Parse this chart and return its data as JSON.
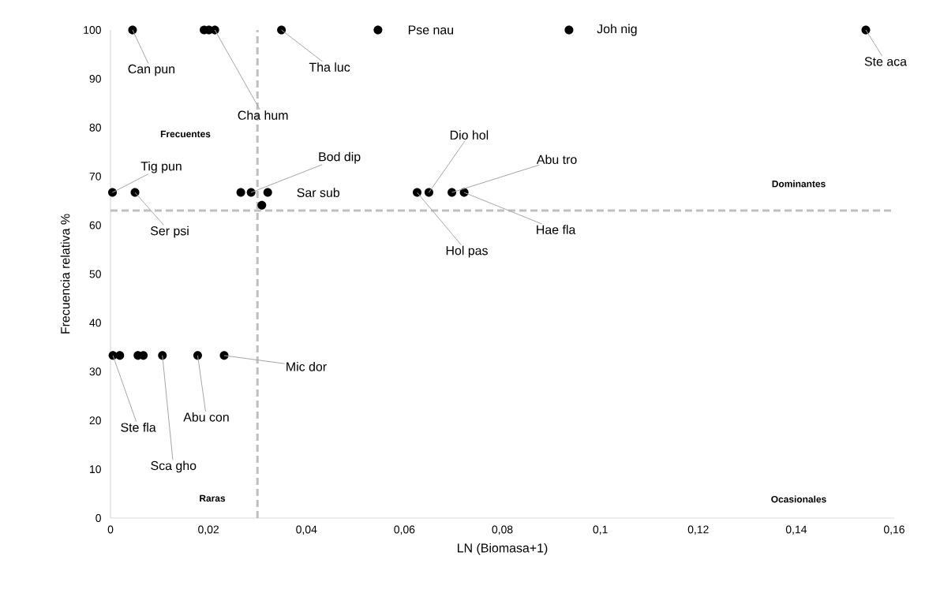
{
  "chart_data": {
    "type": "scatter",
    "xlabel": "LN (Biomasa+1)",
    "ylabel": "Frecuencia relativa %",
    "color": "#000000",
    "marker": "circle",
    "x": [
      0.0045,
      0.0191,
      0.0201,
      0.0213,
      0.0349,
      0.0546,
      0.0936,
      0.1542,
      0.0004,
      0.005,
      0.0266,
      0.0287,
      0.0321,
      0.0309,
      0.0626,
      0.065,
      0.0697,
      0.0722,
      0.0005,
      0.0019,
      0.0056,
      0.0067,
      0.0106,
      0.0178,
      0.0232
    ],
    "values": [
      100,
      100,
      100,
      100,
      100,
      100,
      100,
      100,
      66.7,
      66.7,
      66.7,
      66.7,
      66.7,
      64.1,
      66.7,
      66.7,
      66.7,
      66.7,
      33.3,
      33.3,
      33.3,
      33.3,
      33.3,
      33.3,
      33.3
    ],
    "xlim": [
      0,
      0.16
    ],
    "ylim": [
      0,
      100
    ],
    "xticks": [
      0,
      {
        "value": 0.02,
        "label": "0,02"
      },
      {
        "value": 0.04,
        "label": "0,04"
      },
      {
        "value": 0.06,
        "label": "0,06"
      },
      {
        "value": 0.08,
        "label": "0,08"
      },
      {
        "value": 0.1,
        "label": "0,1"
      },
      {
        "value": 0.12,
        "label": "0,12"
      },
      {
        "value": 0.14,
        "label": "0,14"
      },
      {
        "value": 0.16,
        "label": "0,16"
      }
    ],
    "yticks": [
      0,
      10,
      20,
      30,
      40,
      50,
      60,
      70,
      80,
      90,
      100
    ],
    "ref_lines": [
      {
        "axis": "x",
        "value": 0.03,
        "color": "#bfbfbf",
        "line_style": "dashed"
      },
      {
        "axis": "y",
        "value": 63,
        "color": "#bfbfbf",
        "line_style": "dashed"
      }
    ],
    "annotations": [
      {
        "text": "Can pun",
        "x": 0.0045,
        "y": 100
      },
      {
        "text": "Cha hum",
        "x": 0.0213,
        "y": 100
      },
      {
        "text": "Tha luc",
        "x": 0.0349,
        "y": 100
      },
      {
        "text": "Pse nau",
        "x": 0.0546,
        "y": 100
      },
      {
        "text": "Joh nig",
        "x": 0.0936,
        "y": 100
      },
      {
        "text": "Ste aca",
        "x": 0.1542,
        "y": 100
      },
      {
        "text": "Tig pun",
        "x": 0.0004,
        "y": 66.7
      },
      {
        "text": "Ser psi",
        "x": 0.005,
        "y": 66.7
      },
      {
        "text": "Bod dip",
        "x": 0.0287,
        "y": 66.7
      },
      {
        "text": "Sar sub",
        "x": 0.0321,
        "y": 66.7
      },
      {
        "text": "Dio hol",
        "x": 0.065,
        "y": 66.7
      },
      {
        "text": "Abu tro",
        "x": 0.0697,
        "y": 66.7
      },
      {
        "text": "Hol pas",
        "x": 0.0626,
        "y": 66.7
      },
      {
        "text": "Hae fla",
        "x": 0.0722,
        "y": 66.7
      },
      {
        "text": "Mic dor",
        "x": 0.0232,
        "y": 33.3
      },
      {
        "text": "Ste fla",
        "x": 0.0005,
        "y": 33.3
      },
      {
        "text": "Abu con",
        "x": 0.0178,
        "y": 33.3
      },
      {
        "text": "Sca gho",
        "x": 0.0106,
        "y": 33.3
      },
      "Frecuentes",
      "Dominantes",
      "Raras",
      "Ocasionales"
    ]
  }
}
